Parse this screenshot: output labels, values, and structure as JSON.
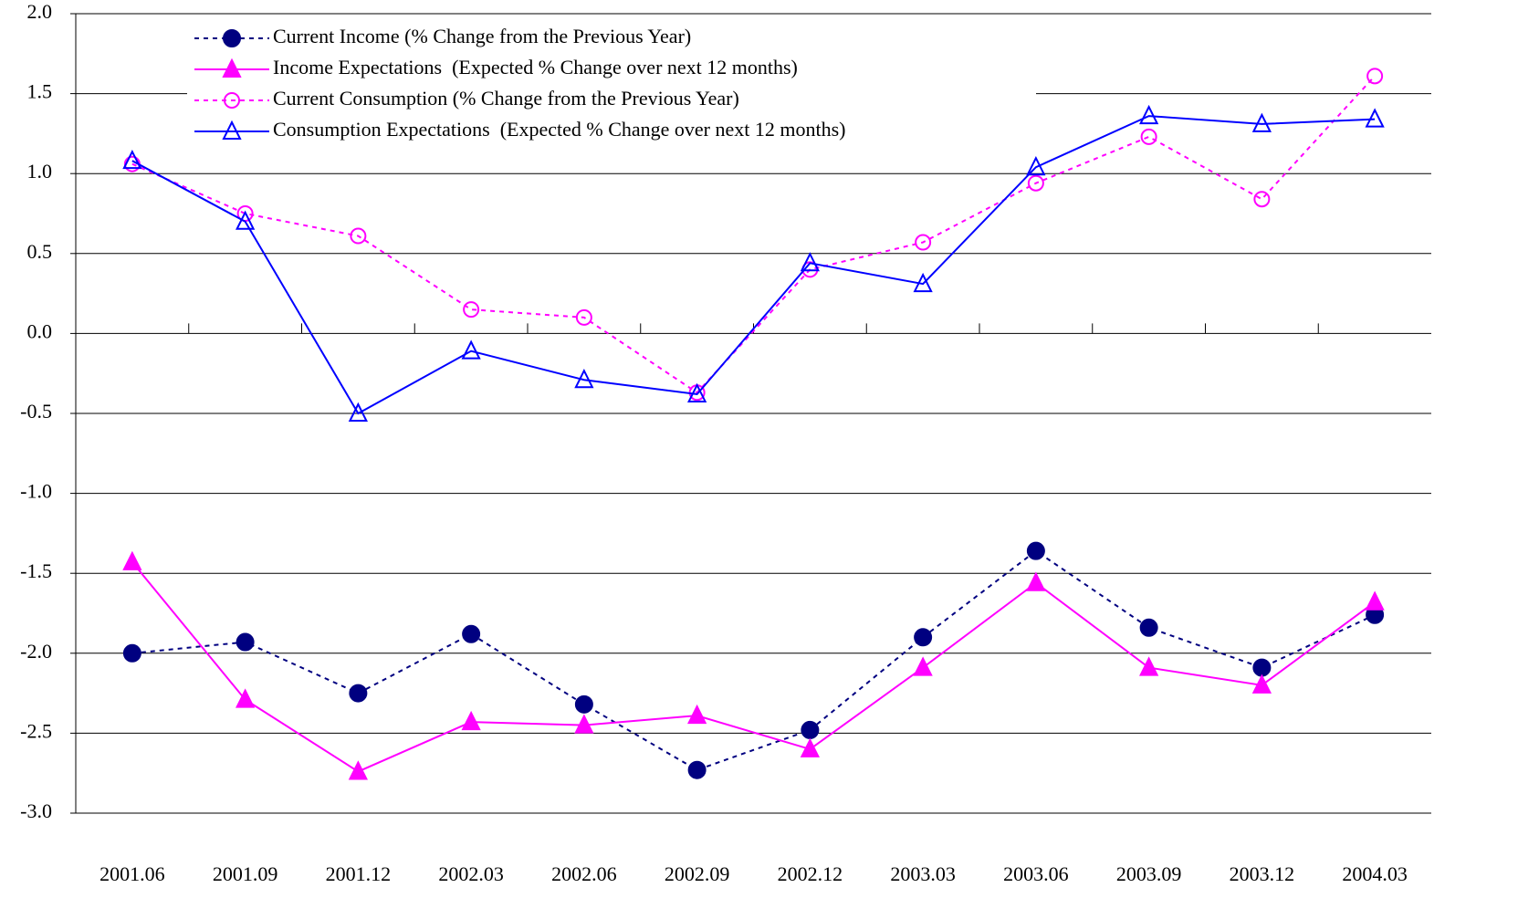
{
  "chart_data": {
    "type": "line",
    "categories": [
      "2001.06",
      "2001.09",
      "2001.12",
      "2002.03",
      "2002.06",
      "2002.09",
      "2002.12",
      "2003.03",
      "2003.06",
      "2003.09",
      "2003.12",
      "2004.03"
    ],
    "series": [
      {
        "name": "Current Income (% Change from the Previous Year)",
        "color": "#000080",
        "marker": "circle",
        "filled": true,
        "dashed": true,
        "values": [
          -2.0,
          -1.93,
          -2.25,
          -1.88,
          -2.32,
          -2.73,
          -2.48,
          -1.9,
          -1.36,
          -1.84,
          -2.09,
          -1.76
        ]
      },
      {
        "name": "Income Expectations  (Expected % Change over next 12 months)",
        "color": "#ff00ff",
        "marker": "triangle",
        "filled": true,
        "dashed": false,
        "values": [
          -1.43,
          -2.29,
          -2.74,
          -2.43,
          -2.45,
          -2.39,
          -2.6,
          -2.09,
          -1.56,
          -2.09,
          -2.2,
          -1.68
        ]
      },
      {
        "name": "Current Consumption (% Change from the Previous Year)",
        "color": "#ff00ff",
        "marker": "circle",
        "filled": false,
        "dashed": true,
        "values": [
          1.06,
          0.75,
          0.61,
          0.15,
          0.1,
          -0.37,
          0.4,
          0.57,
          0.94,
          1.23,
          0.84,
          1.61
        ]
      },
      {
        "name": "Consumption Expectations  (Expected % Change over next 12 months)",
        "color": "#0000ff",
        "marker": "triangle",
        "filled": false,
        "dashed": false,
        "values": [
          1.08,
          0.7,
          -0.5,
          -0.11,
          -0.29,
          -0.38,
          0.44,
          0.31,
          1.04,
          1.36,
          1.31,
          1.34
        ]
      }
    ],
    "ylim": [
      -3.0,
      2.0
    ],
    "yticks": [
      {
        "value": -3.0,
        "label": "-3.0"
      },
      {
        "value": -2.5,
        "label": "-2.5"
      },
      {
        "value": -2.0,
        "label": "-2.0"
      },
      {
        "value": -1.5,
        "label": "-1.5"
      },
      {
        "value": -1.0,
        "label": "-1.0"
      },
      {
        "value": -0.5,
        "label": "-0.5"
      },
      {
        "value": 0.0,
        "label": "0.0"
      },
      {
        "value": 0.5,
        "label": "0.5"
      },
      {
        "value": 1.0,
        "label": "1.0"
      },
      {
        "value": 1.5,
        "label": "1.5"
      },
      {
        "value": 2.0,
        "label": "2.0"
      }
    ],
    "grid": true,
    "legend": "top-left"
  }
}
